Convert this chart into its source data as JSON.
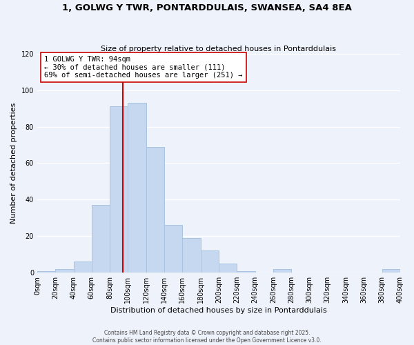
{
  "title1": "1, GOLWG Y TWR, PONTARDDULAIS, SWANSEA, SA4 8EA",
  "title2": "Size of property relative to detached houses in Pontarddulais",
  "xlabel": "Distribution of detached houses by size in Pontarddulais",
  "ylabel": "Number of detached properties",
  "bin_edges": [
    0,
    20,
    40,
    60,
    80,
    100,
    120,
    140,
    160,
    180,
    200,
    220,
    240,
    260,
    280,
    300,
    320,
    340,
    360,
    380,
    400
  ],
  "counts": [
    1,
    2,
    6,
    37,
    91,
    93,
    69,
    26,
    19,
    12,
    5,
    1,
    0,
    2,
    0,
    0,
    0,
    0,
    0,
    2
  ],
  "bar_color": "#c5d8f0",
  "bar_edge_color": "#a8c4e0",
  "vline_x": 94,
  "vline_color": "#cc0000",
  "annotation_title": "1 GOLWG Y TWR: 94sqm",
  "annotation_line1": "← 30% of detached houses are smaller (111)",
  "annotation_line2": "69% of semi-detached houses are larger (251) →",
  "annotation_box_color": "#ffffff",
  "annotation_box_edge": "#cc0000",
  "ylim": [
    0,
    120
  ],
  "yticks": [
    0,
    20,
    40,
    60,
    80,
    100,
    120
  ],
  "footer1": "Contains HM Land Registry data © Crown copyright and database right 2025.",
  "footer2": "Contains public sector information licensed under the Open Government Licence v3.0.",
  "background_color": "#eef2fb",
  "grid_color": "#ffffff",
  "tick_labels": [
    "0sqm",
    "20sqm",
    "40sqm",
    "60sqm",
    "80sqm",
    "100sqm",
    "120sqm",
    "140sqm",
    "160sqm",
    "180sqm",
    "200sqm",
    "220sqm",
    "240sqm",
    "260sqm",
    "280sqm",
    "300sqm",
    "320sqm",
    "340sqm",
    "360sqm",
    "380sqm",
    "400sqm"
  ]
}
